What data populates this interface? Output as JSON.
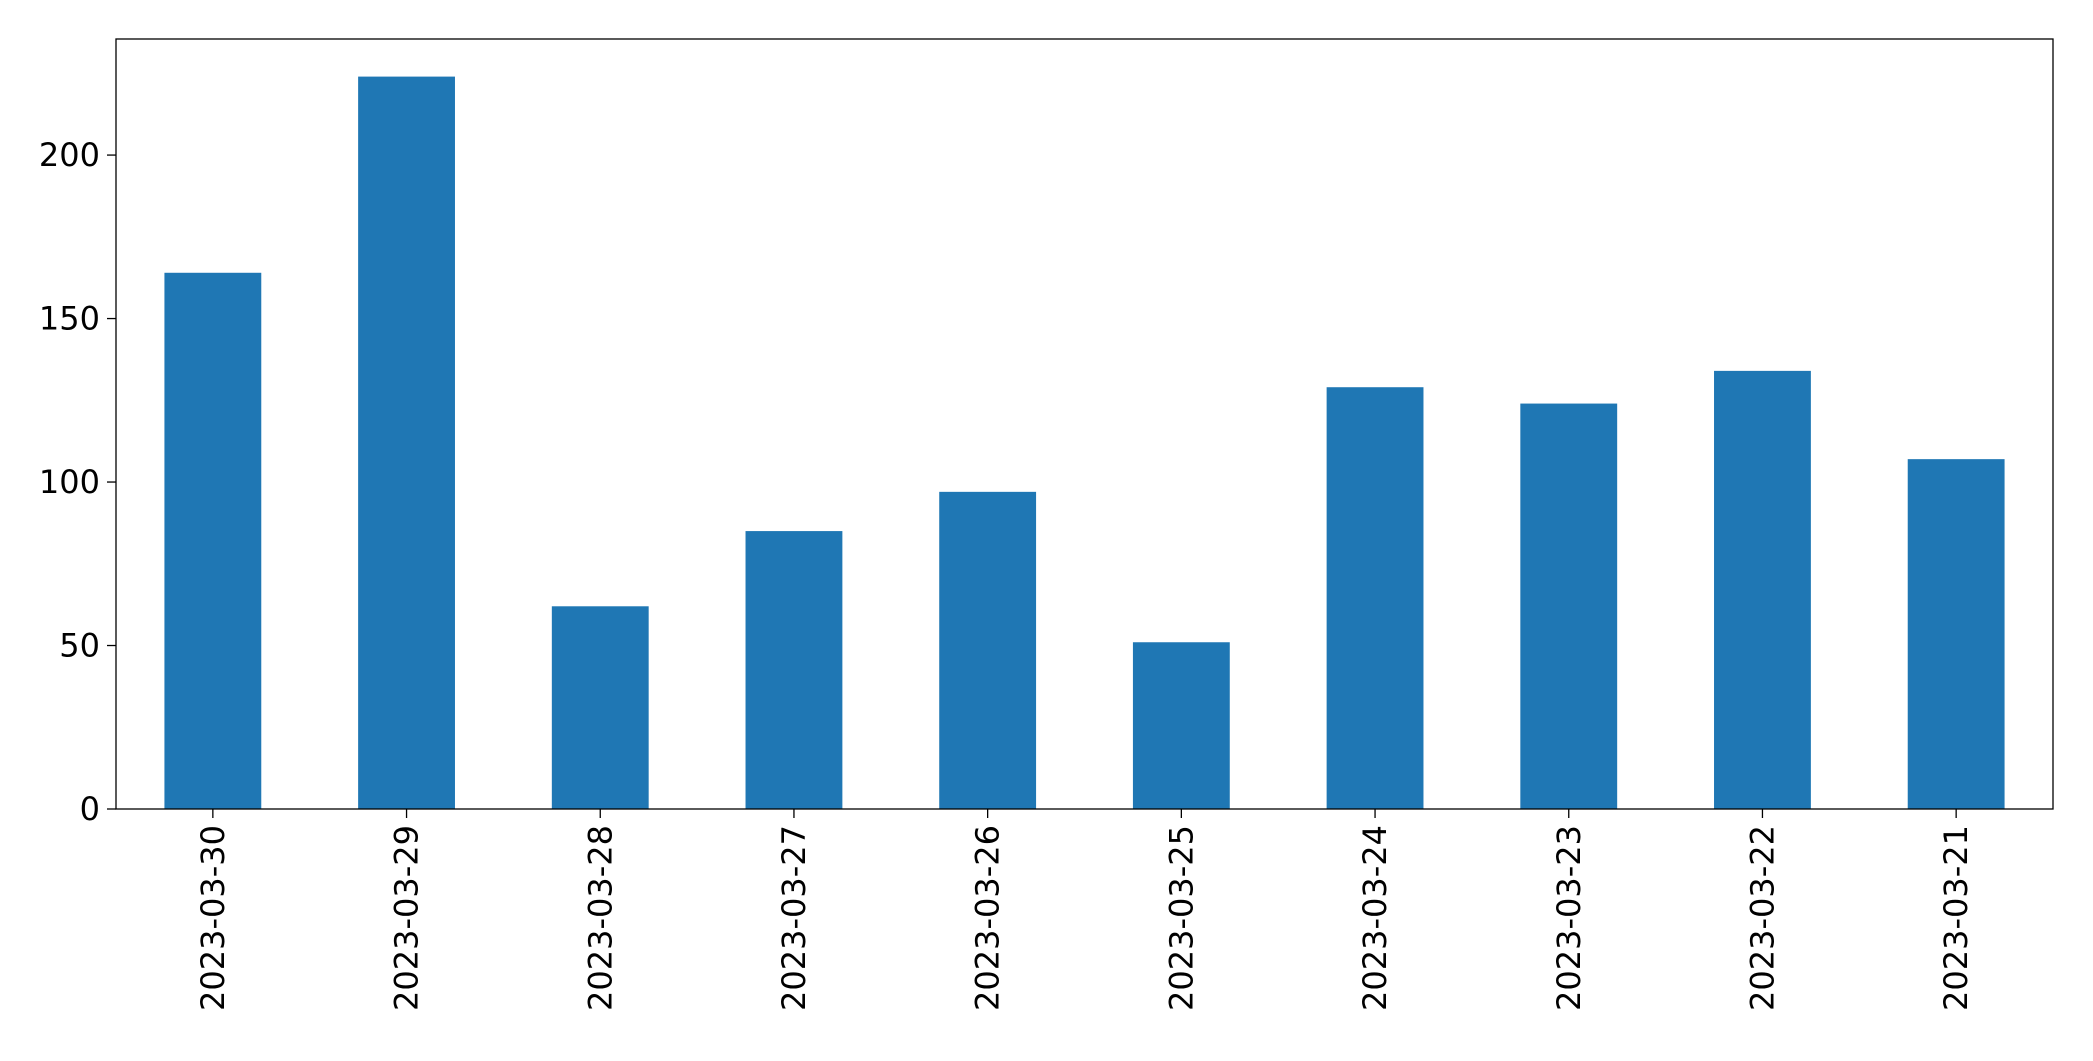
{
  "chart_data": {
    "type": "bar",
    "categories": [
      "2023-03-30",
      "2023-03-29",
      "2023-03-28",
      "2023-03-27",
      "2023-03-26",
      "2023-03-25",
      "2023-03-24",
      "2023-03-23",
      "2023-03-22",
      "2023-03-21"
    ],
    "values": [
      164,
      224,
      62,
      85,
      97,
      51,
      129,
      124,
      134,
      107
    ],
    "color": "#1f77b4",
    "ylim": [
      0,
      235.5
    ],
    "yticks": [
      0,
      50,
      100,
      150,
      200
    ],
    "grid": false
  }
}
